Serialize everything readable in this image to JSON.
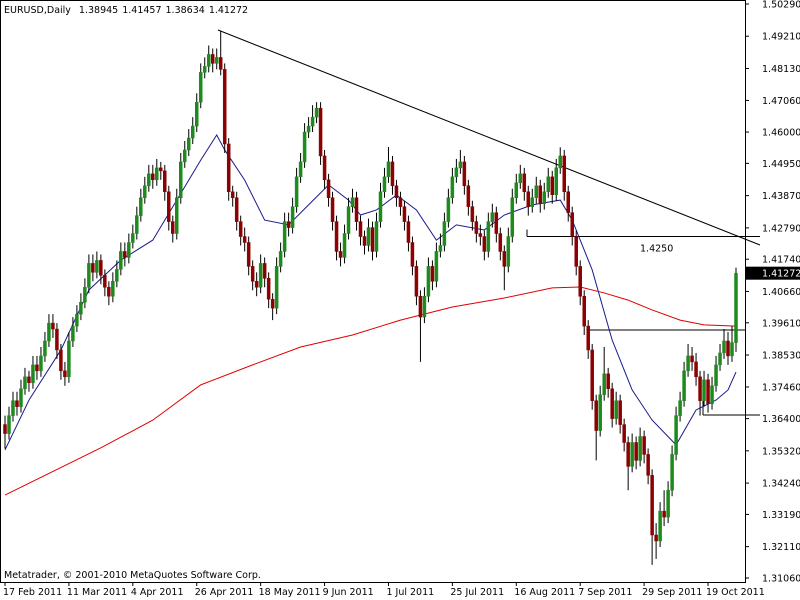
{
  "chart_data": {
    "type": "candlestick",
    "title": "EURUSD,Daily",
    "footer": "Metatrader, © 2001-2010 MetaQuotes Software Corp.",
    "up_color": "#1e8a1e",
    "down_color": "#8b0000",
    "ylim": [
      1.3106,
      1.5029
    ],
    "yticks": [
      {
        "value": 1.5029,
        "label": "1.50290"
      },
      {
        "value": 1.4921,
        "label": "1.49210"
      },
      {
        "value": 1.4813,
        "label": "1.48130"
      },
      {
        "value": 1.4706,
        "label": "1.47060"
      },
      {
        "value": 1.46,
        "label": "1.46000"
      },
      {
        "value": 1.4495,
        "label": "1.44950"
      },
      {
        "value": 1.4387,
        "label": "1.43870"
      },
      {
        "value": 1.4279,
        "label": "1.42790"
      },
      {
        "value": 1.4174,
        "label": "1.41740"
      },
      {
        "value": 1.4066,
        "label": "1.40660"
      },
      {
        "value": 1.3961,
        "label": "1.39610"
      },
      {
        "value": 1.3853,
        "label": "1.38530"
      },
      {
        "value": 1.3746,
        "label": "1.37460"
      },
      {
        "value": 1.364,
        "label": "1.36400"
      },
      {
        "value": 1.3532,
        "label": "1.35320"
      },
      {
        "value": 1.3424,
        "label": "1.34240"
      },
      {
        "value": 1.3319,
        "label": "1.33190"
      },
      {
        "value": 1.3211,
        "label": "1.32110"
      },
      {
        "value": 1.3106,
        "label": "1.31060"
      }
    ],
    "annotations": [
      {
        "value": 1.425,
        "label": "1.4250"
      }
    ],
    "categories": [
      "17 Feb 2011",
      null,
      null,
      null,
      null,
      null,
      null,
      null,
      null,
      null,
      null,
      null,
      null,
      null,
      null,
      null,
      "11 Mar 2011",
      null,
      null,
      null,
      null,
      null,
      null,
      null,
      null,
      null,
      null,
      null,
      null,
      null,
      null,
      null,
      "4 Apr 2011",
      null,
      null,
      null,
      null,
      null,
      null,
      null,
      null,
      null,
      null,
      null,
      null,
      null,
      null,
      null,
      "26 Apr 2011",
      null,
      null,
      null,
      null,
      null,
      null,
      null,
      null,
      null,
      null,
      null,
      null,
      null,
      null,
      null,
      "18 May 2011",
      null,
      null,
      null,
      null,
      null,
      null,
      null,
      null,
      null,
      null,
      null,
      null,
      null,
      null,
      null,
      "9 Jun 2011",
      null,
      null,
      null,
      null,
      null,
      null,
      null,
      null,
      null,
      null,
      null,
      null,
      null,
      null,
      null,
      "1 Jul 2011",
      null,
      null,
      null,
      null,
      null,
      null,
      null,
      null,
      null,
      null,
      null,
      null,
      null,
      null,
      null,
      "25 Jul 2011",
      null,
      null,
      null,
      null,
      null,
      null,
      null,
      null,
      null,
      null,
      null,
      null,
      null,
      null,
      null,
      "16 Aug 2011",
      null,
      null,
      null,
      null,
      null,
      null,
      null,
      null,
      null,
      null,
      null,
      null,
      null,
      null,
      null,
      "7 Sep 2011",
      null,
      null,
      null,
      null,
      null,
      null,
      null,
      null,
      null,
      null,
      null,
      null,
      null,
      null,
      null,
      "29 Sep 2011",
      null,
      null,
      null,
      null,
      null,
      null,
      null,
      null,
      null,
      null,
      null,
      null,
      null,
      null,
      null,
      "19 Oct 2011",
      null,
      null,
      null,
      null,
      null,
      null,
      null
    ],
    "ohlc": [
      [
        1.362,
        1.365,
        1.354,
        1.359
      ],
      [
        1.359,
        1.368,
        1.357,
        1.365
      ],
      [
        1.365,
        1.373,
        1.363,
        1.37
      ],
      [
        1.37,
        1.373,
        1.365,
        1.368
      ],
      [
        1.368,
        1.377,
        1.366,
        1.374
      ],
      [
        1.374,
        1.381,
        1.372,
        1.378
      ],
      [
        1.378,
        1.38,
        1.373,
        1.376
      ],
      [
        1.376,
        1.385,
        1.374,
        1.382
      ],
      [
        1.382,
        1.385,
        1.377,
        1.38
      ],
      [
        1.38,
        1.388,
        1.378,
        1.385
      ],
      [
        1.385,
        1.393,
        1.383,
        1.39
      ],
      [
        1.39,
        1.399,
        1.388,
        1.396
      ],
      [
        1.396,
        1.399,
        1.391,
        1.394
      ],
      [
        1.394,
        1.396,
        1.384,
        1.387
      ],
      [
        1.387,
        1.389,
        1.377,
        1.38
      ],
      [
        1.38,
        1.383,
        1.375,
        1.378
      ],
      [
        1.378,
        1.393,
        1.376,
        1.39
      ],
      [
        1.39,
        1.398,
        1.388,
        1.395
      ],
      [
        1.395,
        1.402,
        1.393,
        1.399
      ],
      [
        1.399,
        1.406,
        1.397,
        1.403
      ],
      [
        1.403,
        1.411,
        1.401,
        1.408
      ],
      [
        1.408,
        1.419,
        1.406,
        1.416
      ],
      [
        1.416,
        1.419,
        1.41,
        1.413
      ],
      [
        1.413,
        1.42,
        1.411,
        1.417
      ],
      [
        1.417,
        1.419,
        1.409,
        1.412
      ],
      [
        1.412,
        1.414,
        1.405,
        1.408
      ],
      [
        1.408,
        1.41,
        1.402,
        1.405
      ],
      [
        1.405,
        1.413,
        1.403,
        1.41
      ],
      [
        1.41,
        1.417,
        1.408,
        1.414
      ],
      [
        1.414,
        1.423,
        1.412,
        1.42
      ],
      [
        1.42,
        1.423,
        1.415,
        1.418
      ],
      [
        1.418,
        1.426,
        1.416,
        1.423
      ],
      [
        1.423,
        1.429,
        1.421,
        1.426
      ],
      [
        1.426,
        1.435,
        1.424,
        1.432
      ],
      [
        1.432,
        1.441,
        1.43,
        1.438
      ],
      [
        1.438,
        1.445,
        1.436,
        1.442
      ],
      [
        1.442,
        1.449,
        1.44,
        1.446
      ],
      [
        1.446,
        1.449,
        1.441,
        1.444
      ],
      [
        1.444,
        1.451,
        1.442,
        1.448
      ],
      [
        1.448,
        1.45,
        1.444,
        1.447
      ],
      [
        1.447,
        1.449,
        1.437,
        1.44
      ],
      [
        1.44,
        1.442,
        1.427,
        1.43
      ],
      [
        1.43,
        1.432,
        1.423,
        1.426
      ],
      [
        1.426,
        1.441,
        1.424,
        1.438
      ],
      [
        1.438,
        1.453,
        1.436,
        1.45
      ],
      [
        1.45,
        1.457,
        1.448,
        1.454
      ],
      [
        1.454,
        1.461,
        1.452,
        1.458
      ],
      [
        1.458,
        1.465,
        1.456,
        1.462
      ],
      [
        1.462,
        1.473,
        1.46,
        1.47
      ],
      [
        1.47,
        1.483,
        1.468,
        1.48
      ],
      [
        1.48,
        1.485,
        1.478,
        1.482
      ],
      [
        1.482,
        1.489,
        1.48,
        1.486
      ],
      [
        1.486,
        1.488,
        1.48,
        1.483
      ],
      [
        1.483,
        1.488,
        1.481,
        1.485
      ],
      [
        1.485,
        1.494,
        1.479,
        1.481
      ],
      [
        1.481,
        1.483,
        1.453,
        1.456
      ],
      [
        1.456,
        1.458,
        1.437,
        1.44
      ],
      [
        1.44,
        1.442,
        1.435,
        1.438
      ],
      [
        1.438,
        1.44,
        1.427,
        1.43
      ],
      [
        1.43,
        1.432,
        1.422,
        1.425
      ],
      [
        1.425,
        1.428,
        1.42,
        1.423
      ],
      [
        1.423,
        1.425,
        1.412,
        1.415
      ],
      [
        1.415,
        1.417,
        1.407,
        1.41
      ],
      [
        1.41,
        1.413,
        1.405,
        1.408
      ],
      [
        1.408,
        1.419,
        1.406,
        1.416
      ],
      [
        1.416,
        1.418,
        1.408,
        1.411
      ],
      [
        1.411,
        1.413,
        1.401,
        1.404
      ],
      [
        1.404,
        1.406,
        1.397,
        1.401
      ],
      [
        1.401,
        1.418,
        1.399,
        1.415
      ],
      [
        1.415,
        1.423,
        1.413,
        1.42
      ],
      [
        1.42,
        1.433,
        1.418,
        1.43
      ],
      [
        1.43,
        1.433,
        1.425,
        1.428
      ],
      [
        1.428,
        1.438,
        1.426,
        1.435
      ],
      [
        1.435,
        1.448,
        1.433,
        1.445
      ],
      [
        1.445,
        1.453,
        1.443,
        1.45
      ],
      [
        1.45,
        1.463,
        1.448,
        1.46
      ],
      [
        1.46,
        1.465,
        1.458,
        1.462
      ],
      [
        1.462,
        1.469,
        1.46,
        1.465
      ],
      [
        1.465,
        1.47,
        1.463,
        1.468
      ],
      [
        1.468,
        1.47,
        1.449,
        1.452
      ],
      [
        1.452,
        1.454,
        1.441,
        1.444
      ],
      [
        1.444,
        1.446,
        1.435,
        1.438
      ],
      [
        1.438,
        1.44,
        1.427,
        1.43
      ],
      [
        1.43,
        1.432,
        1.417,
        1.42
      ],
      [
        1.42,
        1.423,
        1.415,
        1.418
      ],
      [
        1.418,
        1.429,
        1.416,
        1.426
      ],
      [
        1.426,
        1.438,
        1.424,
        1.435
      ],
      [
        1.435,
        1.441,
        1.433,
        1.438
      ],
      [
        1.438,
        1.44,
        1.427,
        1.43
      ],
      [
        1.43,
        1.432,
        1.422,
        1.425
      ],
      [
        1.425,
        1.427,
        1.419,
        1.422
      ],
      [
        1.422,
        1.431,
        1.42,
        1.428
      ],
      [
        1.428,
        1.43,
        1.417,
        1.42
      ],
      [
        1.42,
        1.433,
        1.418,
        1.43
      ],
      [
        1.43,
        1.443,
        1.428,
        1.44
      ],
      [
        1.44,
        1.448,
        1.438,
        1.445
      ],
      [
        1.445,
        1.455,
        1.443,
        1.45
      ],
      [
        1.45,
        1.452,
        1.439,
        1.442
      ],
      [
        1.442,
        1.444,
        1.435,
        1.438
      ],
      [
        1.438,
        1.44,
        1.432,
        1.435
      ],
      [
        1.435,
        1.437,
        1.427,
        1.43
      ],
      [
        1.43,
        1.432,
        1.42,
        1.423
      ],
      [
        1.423,
        1.425,
        1.412,
        1.415
      ],
      [
        1.415,
        1.417,
        1.402,
        1.405
      ],
      [
        1.405,
        1.407,
        1.383,
        1.398
      ],
      [
        1.398,
        1.408,
        1.396,
        1.405
      ],
      [
        1.405,
        1.418,
        1.403,
        1.415
      ],
      [
        1.415,
        1.417,
        1.407,
        1.41
      ],
      [
        1.41,
        1.423,
        1.408,
        1.42
      ],
      [
        1.42,
        1.426,
        1.418,
        1.422
      ],
      [
        1.422,
        1.433,
        1.42,
        1.43
      ],
      [
        1.43,
        1.441,
        1.428,
        1.438
      ],
      [
        1.438,
        1.448,
        1.436,
        1.445
      ],
      [
        1.445,
        1.451,
        1.443,
        1.448
      ],
      [
        1.448,
        1.454,
        1.446,
        1.45
      ],
      [
        1.45,
        1.452,
        1.439,
        1.442
      ],
      [
        1.442,
        1.444,
        1.432,
        1.435
      ],
      [
        1.435,
        1.437,
        1.427,
        1.43
      ],
      [
        1.43,
        1.432,
        1.423,
        1.426
      ],
      [
        1.426,
        1.429,
        1.422,
        1.425
      ],
      [
        1.425,
        1.427,
        1.417,
        1.42
      ],
      [
        1.42,
        1.433,
        1.418,
        1.43
      ],
      [
        1.43,
        1.436,
        1.428,
        1.433
      ],
      [
        1.433,
        1.435,
        1.423,
        1.426
      ],
      [
        1.426,
        1.428,
        1.417,
        1.42
      ],
      [
        1.42,
        1.422,
        1.407,
        1.415
      ],
      [
        1.415,
        1.428,
        1.413,
        1.425
      ],
      [
        1.425,
        1.441,
        1.423,
        1.438
      ],
      [
        1.438,
        1.446,
        1.436,
        1.443
      ],
      [
        1.443,
        1.449,
        1.441,
        1.446
      ],
      [
        1.446,
        1.448,
        1.437,
        1.44
      ],
      [
        1.44,
        1.442,
        1.432,
        1.435
      ],
      [
        1.435,
        1.441,
        1.433,
        1.438
      ],
      [
        1.438,
        1.445,
        1.436,
        1.442
      ],
      [
        1.442,
        1.444,
        1.433,
        1.436
      ],
      [
        1.436,
        1.443,
        1.434,
        1.44
      ],
      [
        1.44,
        1.448,
        1.438,
        1.445
      ],
      [
        1.445,
        1.447,
        1.436,
        1.439
      ],
      [
        1.439,
        1.451,
        1.437,
        1.448
      ],
      [
        1.448,
        1.4549,
        1.446,
        1.452
      ],
      [
        1.452,
        1.454,
        1.437,
        1.44
      ],
      [
        1.44,
        1.442,
        1.43,
        1.433
      ],
      [
        1.433,
        1.435,
        1.422,
        1.425
      ],
      [
        1.425,
        1.427,
        1.412,
        1.415
      ],
      [
        1.415,
        1.417,
        1.402,
        1.405
      ],
      [
        1.405,
        1.407,
        1.392,
        1.395
      ],
      [
        1.395,
        1.397,
        1.384,
        1.387
      ],
      [
        1.387,
        1.389,
        1.367,
        1.37
      ],
      [
        1.37,
        1.372,
        1.35,
        1.36
      ],
      [
        1.36,
        1.375,
        1.358,
        1.372
      ],
      [
        1.372,
        1.388,
        1.37,
        1.379
      ],
      [
        1.379,
        1.381,
        1.371,
        1.374
      ],
      [
        1.374,
        1.376,
        1.361,
        1.364
      ],
      [
        1.364,
        1.373,
        1.362,
        1.37
      ],
      [
        1.37,
        1.372,
        1.359,
        1.362
      ],
      [
        1.362,
        1.364,
        1.353,
        1.356
      ],
      [
        1.356,
        1.358,
        1.34,
        1.348
      ],
      [
        1.348,
        1.359,
        1.346,
        1.356
      ],
      [
        1.356,
        1.358,
        1.347,
        1.35
      ],
      [
        1.35,
        1.361,
        1.348,
        1.358
      ],
      [
        1.358,
        1.36,
        1.349,
        1.352
      ],
      [
        1.352,
        1.354,
        1.342,
        1.345
      ],
      [
        1.345,
        1.347,
        1.315,
        1.325
      ],
      [
        1.325,
        1.329,
        1.317,
        1.323
      ],
      [
        1.323,
        1.336,
        1.321,
        1.333
      ],
      [
        1.333,
        1.34,
        1.328,
        1.331
      ],
      [
        1.331,
        1.343,
        1.329,
        1.34
      ],
      [
        1.34,
        1.355,
        1.338,
        1.352
      ],
      [
        1.352,
        1.368,
        1.35,
        1.365
      ],
      [
        1.365,
        1.373,
        1.363,
        1.37
      ],
      [
        1.37,
        1.383,
        1.368,
        1.38
      ],
      [
        1.38,
        1.389,
        1.378,
        1.385
      ],
      [
        1.385,
        1.388,
        1.38,
        1.383
      ],
      [
        1.383,
        1.386,
        1.375,
        1.378
      ],
      [
        1.378,
        1.38,
        1.365,
        1.37
      ],
      [
        1.37,
        1.38,
        1.368,
        1.377
      ],
      [
        1.377,
        1.379,
        1.366,
        1.369
      ],
      [
        1.369,
        1.378,
        1.367,
        1.375
      ],
      [
        1.375,
        1.385,
        1.373,
        1.382
      ],
      [
        1.382,
        1.389,
        1.38,
        1.386
      ],
      [
        1.386,
        1.394,
        1.384,
        1.39
      ],
      [
        1.39,
        1.393,
        1.382,
        1.385
      ],
      [
        1.385,
        1.395,
        1.383,
        1.38945
      ],
      [
        1.38945,
        1.41457,
        1.38634,
        1.41272
      ]
    ],
    "moving_averages": [
      {
        "color": "#1a1a8c",
        "x": [
          0,
          6,
          14,
          21,
          29,
          37,
          43,
          49,
          53,
          55,
          60,
          65,
          71,
          76,
          81,
          86,
          89,
          93,
          98,
          103,
          108,
          113,
          120,
          125,
          132,
          139,
          142,
          147,
          152,
          157,
          162,
          168,
          173,
          178,
          181,
          183
        ],
        "values": [
          1.3535,
          1.3702,
          1.387,
          1.4071,
          1.4171,
          1.4238,
          1.4372,
          1.4506,
          1.459,
          1.454,
          1.4439,
          1.4305,
          1.4289,
          1.4356,
          1.4423,
          1.4372,
          1.4322,
          1.4339,
          1.4389,
          1.4339,
          1.4238,
          1.4289,
          1.4272,
          1.4322,
          1.4356,
          1.4372,
          1.4305,
          1.4138,
          1.3903,
          1.3736,
          1.3635,
          1.3552,
          1.3669,
          1.3702,
          1.3736,
          1.3796
        ]
      },
      {
        "color": "#e00000",
        "x": [
          0,
          24,
          37,
          49,
          62,
          74,
          87,
          99,
          112,
          125,
          137,
          144,
          150,
          156,
          162,
          169,
          175,
          183
        ],
        "values": [
          1.3384,
          1.3542,
          1.3635,
          1.3753,
          1.382,
          1.388,
          1.392,
          1.397,
          1.4014,
          1.4044,
          1.4078,
          1.4081,
          1.4061,
          1.4037,
          1.4004,
          1.397,
          1.3954,
          1.395
        ]
      }
    ]
  }
}
